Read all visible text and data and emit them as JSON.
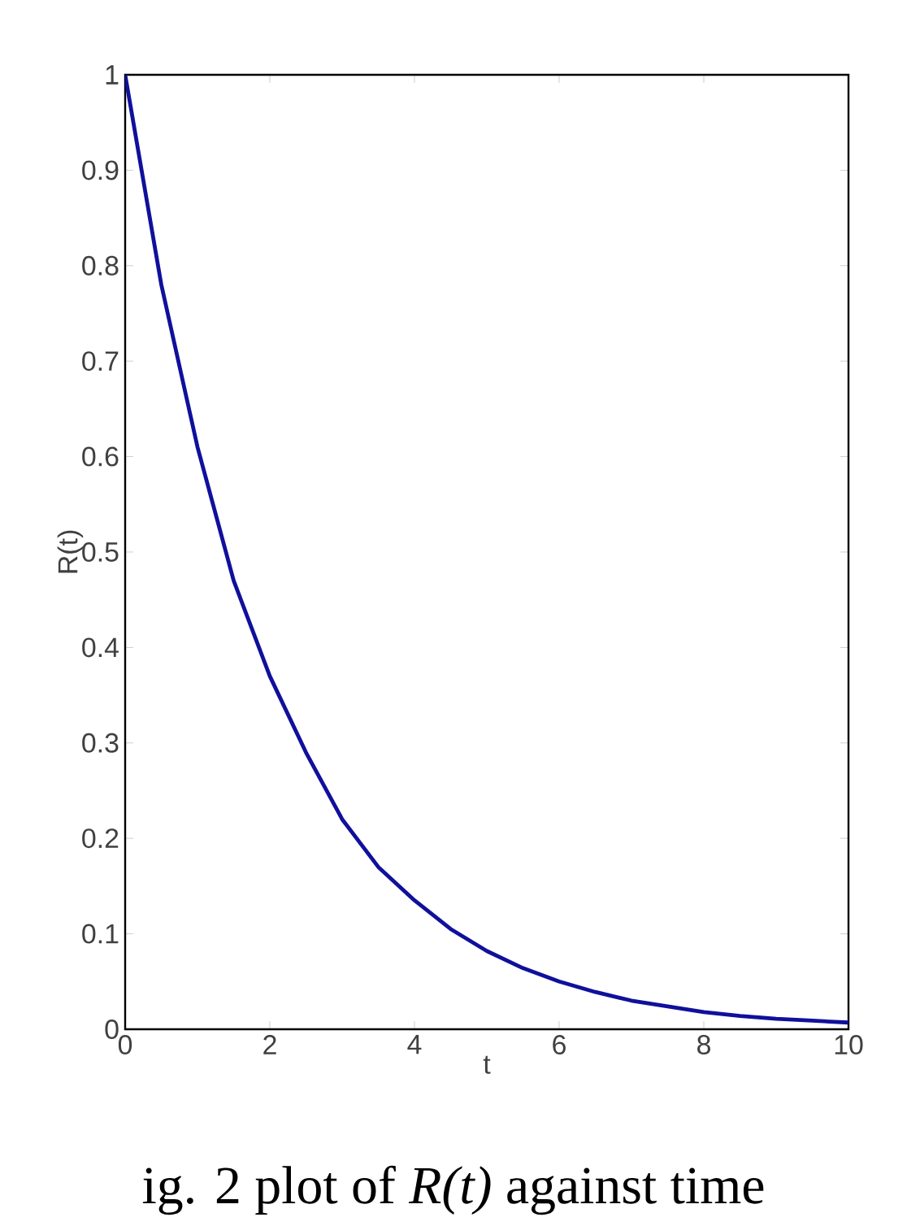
{
  "chart_data": {
    "type": "line",
    "xlabel": "t",
    "ylabel": "R(t)",
    "x": [
      0,
      0.5,
      1,
      1.5,
      2,
      2.5,
      3,
      3.5,
      4,
      4.5,
      5,
      5.5,
      6,
      6.5,
      7,
      7.5,
      8,
      8.5,
      9,
      9.5,
      10
    ],
    "series": [
      {
        "color": "#10109c",
        "values": [
          1,
          0.78,
          0.61,
          0.47,
          0.37,
          0.29,
          0.22,
          0.17,
          0.135,
          0.105,
          0.082,
          0.064,
          0.05,
          0.039,
          0.03,
          0.024,
          0.018,
          0.014,
          0.011,
          0.009,
          0.007
        ]
      }
    ],
    "xlim": [
      0,
      10
    ],
    "ylim": [
      0,
      1
    ],
    "xticks": [
      0,
      2,
      4,
      6,
      8,
      10
    ],
    "yticks": [
      0,
      0.1,
      0.2,
      0.3,
      0.4,
      0.5,
      0.6,
      0.7,
      0.8,
      0.9,
      1
    ],
    "marker": "none",
    "line_style": "solid",
    "annotations": [
      "ig. 2 plot of *R(t)* against time"
    ]
  }
}
